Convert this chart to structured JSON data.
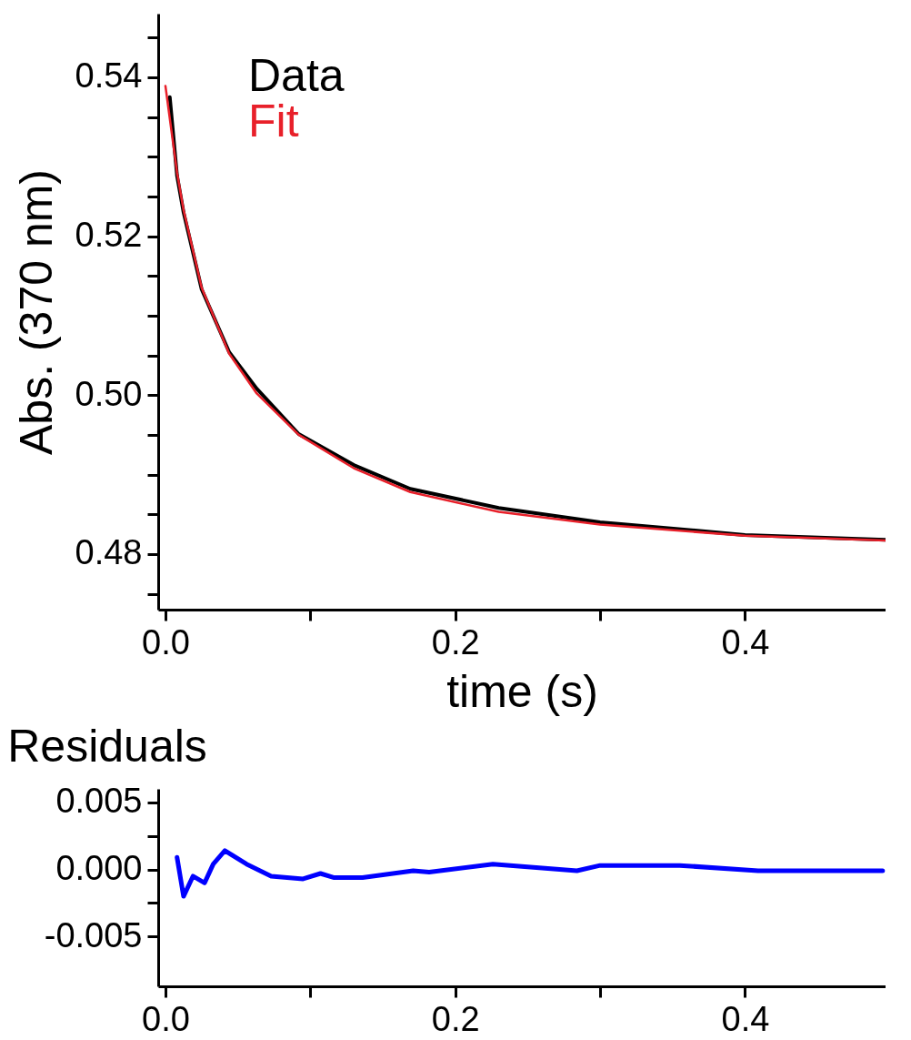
{
  "chart_data": [
    {
      "type": "line",
      "xlabel": "time (s)",
      "ylabel": "Abs. (370 nm)",
      "legend": "top left",
      "xlim": [
        -0.005,
        0.497
      ],
      "ylim": [
        0.473,
        0.548
      ],
      "xticks": [
        {
          "value": 0,
          "label": "0.0"
        },
        {
          "value": 0.1,
          "label": null
        },
        {
          "value": 0.2,
          "label": "0.2"
        },
        {
          "value": 0.3,
          "label": null
        },
        {
          "value": 0.4,
          "label": "0.4"
        }
      ],
      "yticks": [
        {
          "value": 0.475,
          "label": null
        },
        {
          "value": 0.48,
          "label": "0.48"
        },
        {
          "value": 0.485,
          "label": null
        },
        {
          "value": 0.49,
          "label": null
        },
        {
          "value": 0.495,
          "label": null
        },
        {
          "value": 0.5,
          "label": "0.50"
        },
        {
          "value": 0.505,
          "label": null
        },
        {
          "value": 0.51,
          "label": null
        },
        {
          "value": 0.515,
          "label": null
        },
        {
          "value": 0.52,
          "label": "0.52"
        },
        {
          "value": 0.525,
          "label": null
        },
        {
          "value": 0.53,
          "label": null
        },
        {
          "value": 0.535,
          "label": null
        },
        {
          "value": 0.54,
          "label": "0.54"
        },
        {
          "value": 0.545,
          "label": null
        }
      ],
      "series": [
        {
          "name": "Data",
          "color": "#000000",
          "x": [
            0.003,
            0.008,
            0.0125,
            0.025,
            0.044,
            0.063,
            0.092,
            0.13,
            0.169,
            0.23,
            0.3,
            0.4,
            0.497
          ],
          "values": [
            0.5375,
            0.5276,
            0.523,
            0.5133,
            0.5054,
            0.5008,
            0.4951,
            0.4912,
            0.4882,
            0.4858,
            0.484,
            0.4824,
            0.4818
          ]
        },
        {
          "name": "Fit",
          "color": "#e8202a",
          "x": [
            0,
            0.008,
            0.0125,
            0.025,
            0.044,
            0.063,
            0.092,
            0.13,
            0.169,
            0.23,
            0.3,
            0.4,
            0.497
          ],
          "values": [
            0.5389,
            0.528,
            0.5233,
            0.5135,
            0.5052,
            0.5002,
            0.495,
            0.4908,
            0.4878,
            0.4853,
            0.4837,
            0.4823,
            0.4817
          ]
        }
      ]
    },
    {
      "type": "line",
      "title": "Residuals",
      "xlim": [
        -0.005,
        0.497
      ],
      "ylim": [
        -0.0087,
        0.006
      ],
      "xticks": [
        {
          "value": 0,
          "label": "0.0"
        },
        {
          "value": 0.1,
          "label": null
        },
        {
          "value": 0.2,
          "label": "0.2"
        },
        {
          "value": 0.3,
          "label": null
        },
        {
          "value": 0.4,
          "label": "0.4"
        }
      ],
      "yticks": [
        -0.005,
        {
          "value": -0.0025,
          "label": null
        },
        {
          "value": 0,
          "label": "0.000"
        },
        {
          "value": 0.0025,
          "label": null
        },
        0.005
      ],
      "series": [
        {
          "color": "#0000ff",
          "x": [
            0.008,
            0.0125,
            0.019,
            0.027,
            0.033,
            0.041,
            0.056,
            0.073,
            0.095,
            0.107,
            0.116,
            0.136,
            0.171,
            0.182,
            0.226,
            0.284,
            0.3,
            0.355,
            0.409,
            0.495
          ],
          "values": [
            0.0009,
            -0.002,
            -0.0005,
            -0.001,
            0.0004,
            0.0014,
            0.0004,
            -0.0005,
            -0.0007,
            -0.0003,
            -0.0006,
            -0.0006,
            -0.0001,
            -0.0002,
            0.0004,
            -0.0001,
            0.0003,
            0.0003,
            -0.0001,
            -0.0001
          ]
        }
      ]
    }
  ]
}
